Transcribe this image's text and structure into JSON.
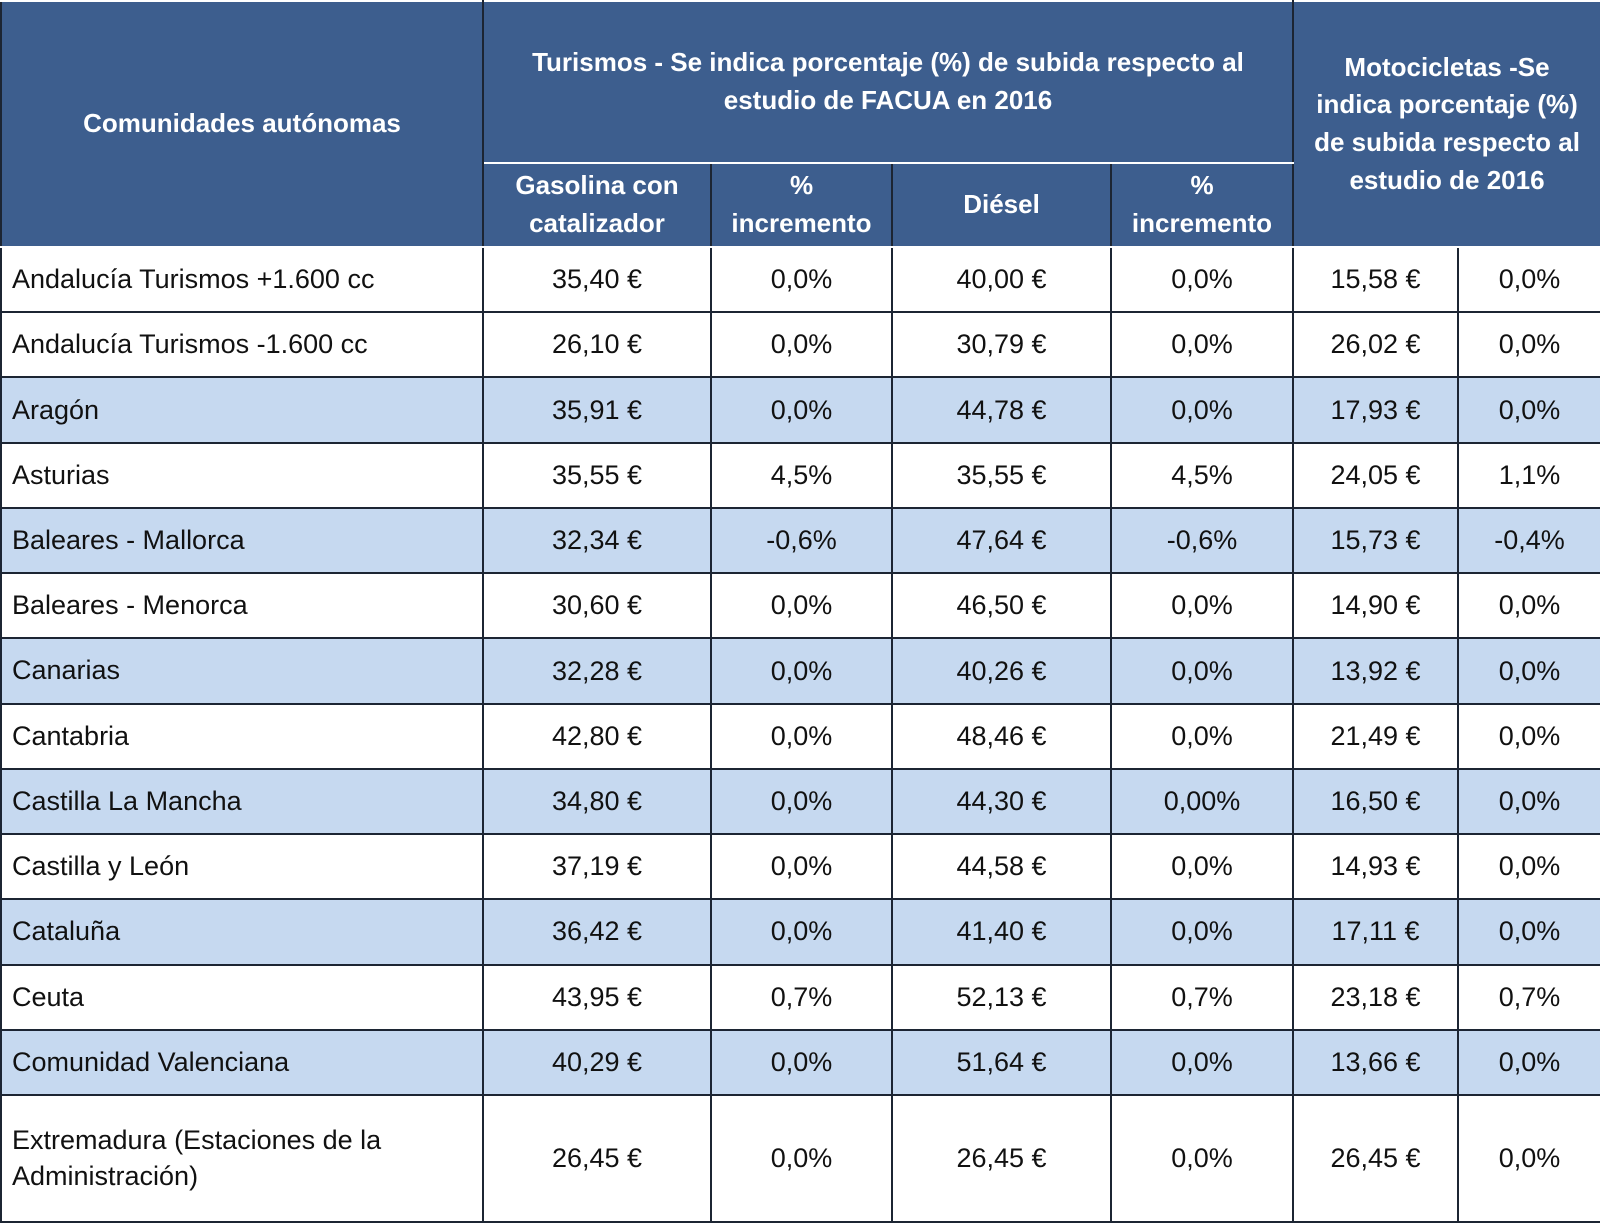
{
  "header": {
    "region": "Comunidades autónomas",
    "cars": "Turismos - Se indica porcentaje (%) de subida respecto al estudio de FACUA en 2016",
    "motorcycles": "Motocicletas -Se indica porcentaje (%) de subida respecto al estudio de 2016",
    "columns": [
      "Gasolina con catalizador",
      "% incremento",
      "Diésel",
      "% incremento"
    ]
  },
  "table": {
    "rows": [
      [
        "Andalucía Turismos +1.600 cc",
        "35,40 €",
        "0,0%",
        "40,00 €",
        "0,0%",
        "15,58 €",
        "0,0%"
      ],
      [
        "Andalucía Turismos -1.600 cc",
        "26,10 €",
        "0,0%",
        "30,79 €",
        "0,0%",
        "26,02 €",
        "0,0%"
      ],
      [
        "Aragón",
        "35,91 €",
        "0,0%",
        "44,78 €",
        "0,0%",
        "17,93 €",
        "0,0%"
      ],
      [
        "Asturias",
        "35,55 €",
        "4,5%",
        "35,55 €",
        "4,5%",
        "24,05 €",
        "1,1%"
      ],
      [
        "Baleares - Mallorca",
        "32,34 €",
        "-0,6%",
        "47,64 €",
        "-0,6%",
        "15,73 €",
        "-0,4%"
      ],
      [
        "Baleares - Menorca",
        "30,60 €",
        "0,0%",
        "46,50 €",
        "0,0%",
        "14,90 €",
        "0,0%"
      ],
      [
        "Canarias",
        "32,28 €",
        "0,0%",
        "40,26 €",
        "0,0%",
        "13,92 €",
        "0,0%"
      ],
      [
        "Cantabria",
        "42,80 €",
        "0,0%",
        "48,46 €",
        "0,0%",
        "21,49 €",
        "0,0%"
      ],
      [
        "Castilla La Mancha",
        "34,80 €",
        "0,0%",
        "44,30 €",
        "0,00%",
        "16,50 €",
        "0,0%"
      ],
      [
        "Castilla y León",
        "37,19 €",
        "0,0%",
        "44,58 €",
        "0,0%",
        "14,93 €",
        "0,0%"
      ],
      [
        "Cataluña",
        "36,42 €",
        "0,0%",
        "41,40 €",
        "0,0%",
        "17,11 €",
        "0,0%"
      ],
      [
        "Ceuta",
        "43,95 €",
        "0,7%",
        "52,13 €",
        "0,7%",
        "23,18 €",
        "0,7%"
      ],
      [
        "Comunidad Valenciana",
        "40,29 €",
        "0,0%",
        "51,64 €",
        "0,0%",
        "13,66 €",
        "0,0%"
      ],
      [
        "Extremadura (Estaciones de la Administración)",
        "26,45 €",
        "0,0%",
        "26,45 €",
        "0,0%",
        "26,45 €",
        "0,0%"
      ]
    ]
  }
}
